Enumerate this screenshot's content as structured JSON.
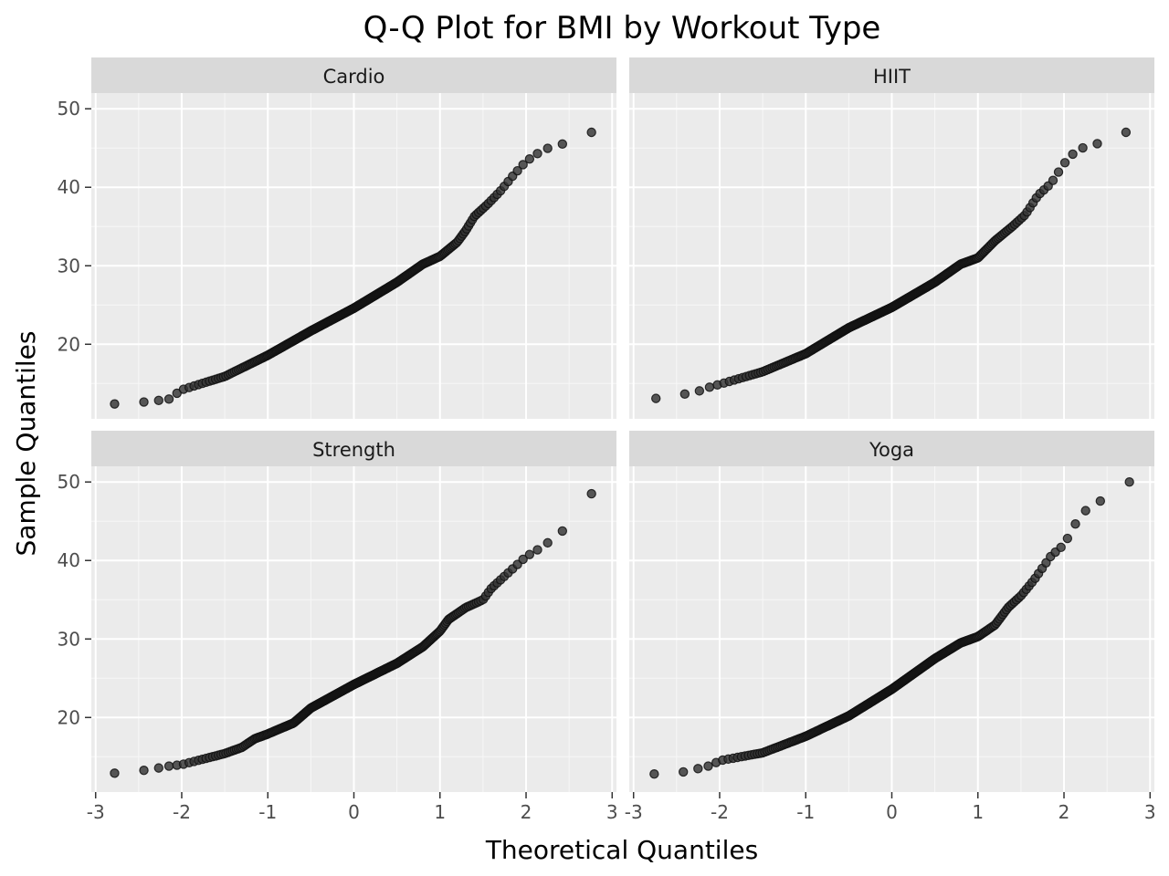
{
  "chart_data": {
    "type": "scatter",
    "title": "Q-Q Plot for BMI by Workout Type",
    "xlabel": "Theoretical Quantiles",
    "ylabel": "Sample Quantiles",
    "xlim": [
      -3,
      3
    ],
    "ylim": [
      10.5,
      52
    ],
    "x_ticks": [
      -3,
      -2,
      -1,
      0,
      1,
      2,
      3
    ],
    "y_ticks": [
      20,
      30,
      40,
      50
    ],
    "grid": true,
    "point_color": "#333333",
    "panel_bg": "#ebebeb",
    "strip_bg": "#d9d9d9",
    "facets": [
      {
        "name": "Cardio",
        "anchors": [
          [
            -2.78,
            12.4
          ],
          [
            -2.48,
            12.6
          ],
          [
            -2.3,
            12.8
          ],
          [
            -2.15,
            13.0
          ],
          [
            -2.0,
            14.2
          ],
          [
            -1.5,
            15.9
          ],
          [
            -1.0,
            18.6
          ],
          [
            -0.5,
            21.7
          ],
          [
            0.0,
            24.6
          ],
          [
            0.5,
            27.9
          ],
          [
            0.8,
            30.2
          ],
          [
            1.0,
            31.2
          ],
          [
            1.2,
            33.0
          ],
          [
            1.3,
            34.5
          ],
          [
            1.4,
            36.3
          ],
          [
            1.55,
            37.8
          ],
          [
            1.7,
            39.5
          ],
          [
            1.85,
            41.5
          ],
          [
            2.0,
            43.3
          ],
          [
            2.2,
            44.8
          ],
          [
            2.45,
            45.6
          ],
          [
            2.76,
            47.0
          ]
        ],
        "points": 300
      },
      {
        "name": "HIIT",
        "anchors": [
          [
            -2.74,
            13.1
          ],
          [
            -2.43,
            13.6
          ],
          [
            -2.25,
            14.0
          ],
          [
            -2.1,
            14.6
          ],
          [
            -2.0,
            14.9
          ],
          [
            -1.5,
            16.5
          ],
          [
            -1.0,
            18.8
          ],
          [
            -0.5,
            22.1
          ],
          [
            0.0,
            24.7
          ],
          [
            0.5,
            27.9
          ],
          [
            0.8,
            30.2
          ],
          [
            1.0,
            31.0
          ],
          [
            1.2,
            33.2
          ],
          [
            1.4,
            35.0
          ],
          [
            1.55,
            36.5
          ],
          [
            1.7,
            39.0
          ],
          [
            1.85,
            40.5
          ],
          [
            2.0,
            43.0
          ],
          [
            2.15,
            44.8
          ],
          [
            2.4,
            45.6
          ],
          [
            2.72,
            47.0
          ]
        ],
        "points": 300
      },
      {
        "name": "Strength",
        "anchors": [
          [
            -2.78,
            12.9
          ],
          [
            -2.48,
            13.2
          ],
          [
            -2.3,
            13.5
          ],
          [
            -2.15,
            13.8
          ],
          [
            -2.0,
            14.0
          ],
          [
            -1.5,
            15.4
          ],
          [
            -1.3,
            16.2
          ],
          [
            -1.15,
            17.3
          ],
          [
            -1.0,
            17.9
          ],
          [
            -0.7,
            19.3
          ],
          [
            -0.5,
            21.2
          ],
          [
            0.0,
            24.2
          ],
          [
            0.5,
            26.9
          ],
          [
            0.8,
            29.0
          ],
          [
            1.0,
            31.0
          ],
          [
            1.1,
            32.5
          ],
          [
            1.3,
            34.0
          ],
          [
            1.5,
            35.0
          ],
          [
            1.6,
            36.5
          ],
          [
            1.8,
            38.5
          ],
          [
            2.0,
            40.5
          ],
          [
            2.2,
            41.8
          ],
          [
            2.45,
            44.0
          ],
          [
            2.76,
            48.5
          ]
        ],
        "points": 300
      },
      {
        "name": "Yoga",
        "anchors": [
          [
            -2.76,
            12.8
          ],
          [
            -2.45,
            13.0
          ],
          [
            -2.28,
            13.4
          ],
          [
            -2.1,
            13.9
          ],
          [
            -2.0,
            14.5
          ],
          [
            -1.5,
            15.5
          ],
          [
            -1.0,
            17.6
          ],
          [
            -0.5,
            20.2
          ],
          [
            0.0,
            23.6
          ],
          [
            0.5,
            27.5
          ],
          [
            0.8,
            29.5
          ],
          [
            1.0,
            30.3
          ],
          [
            1.2,
            31.8
          ],
          [
            1.35,
            34.0
          ],
          [
            1.5,
            35.5
          ],
          [
            1.65,
            37.5
          ],
          [
            1.85,
            40.6
          ],
          [
            2.0,
            42.0
          ],
          [
            2.15,
            45.0
          ],
          [
            2.3,
            47.0
          ],
          [
            2.45,
            47.7
          ],
          [
            2.76,
            50.0
          ]
        ],
        "points": 300
      }
    ]
  }
}
